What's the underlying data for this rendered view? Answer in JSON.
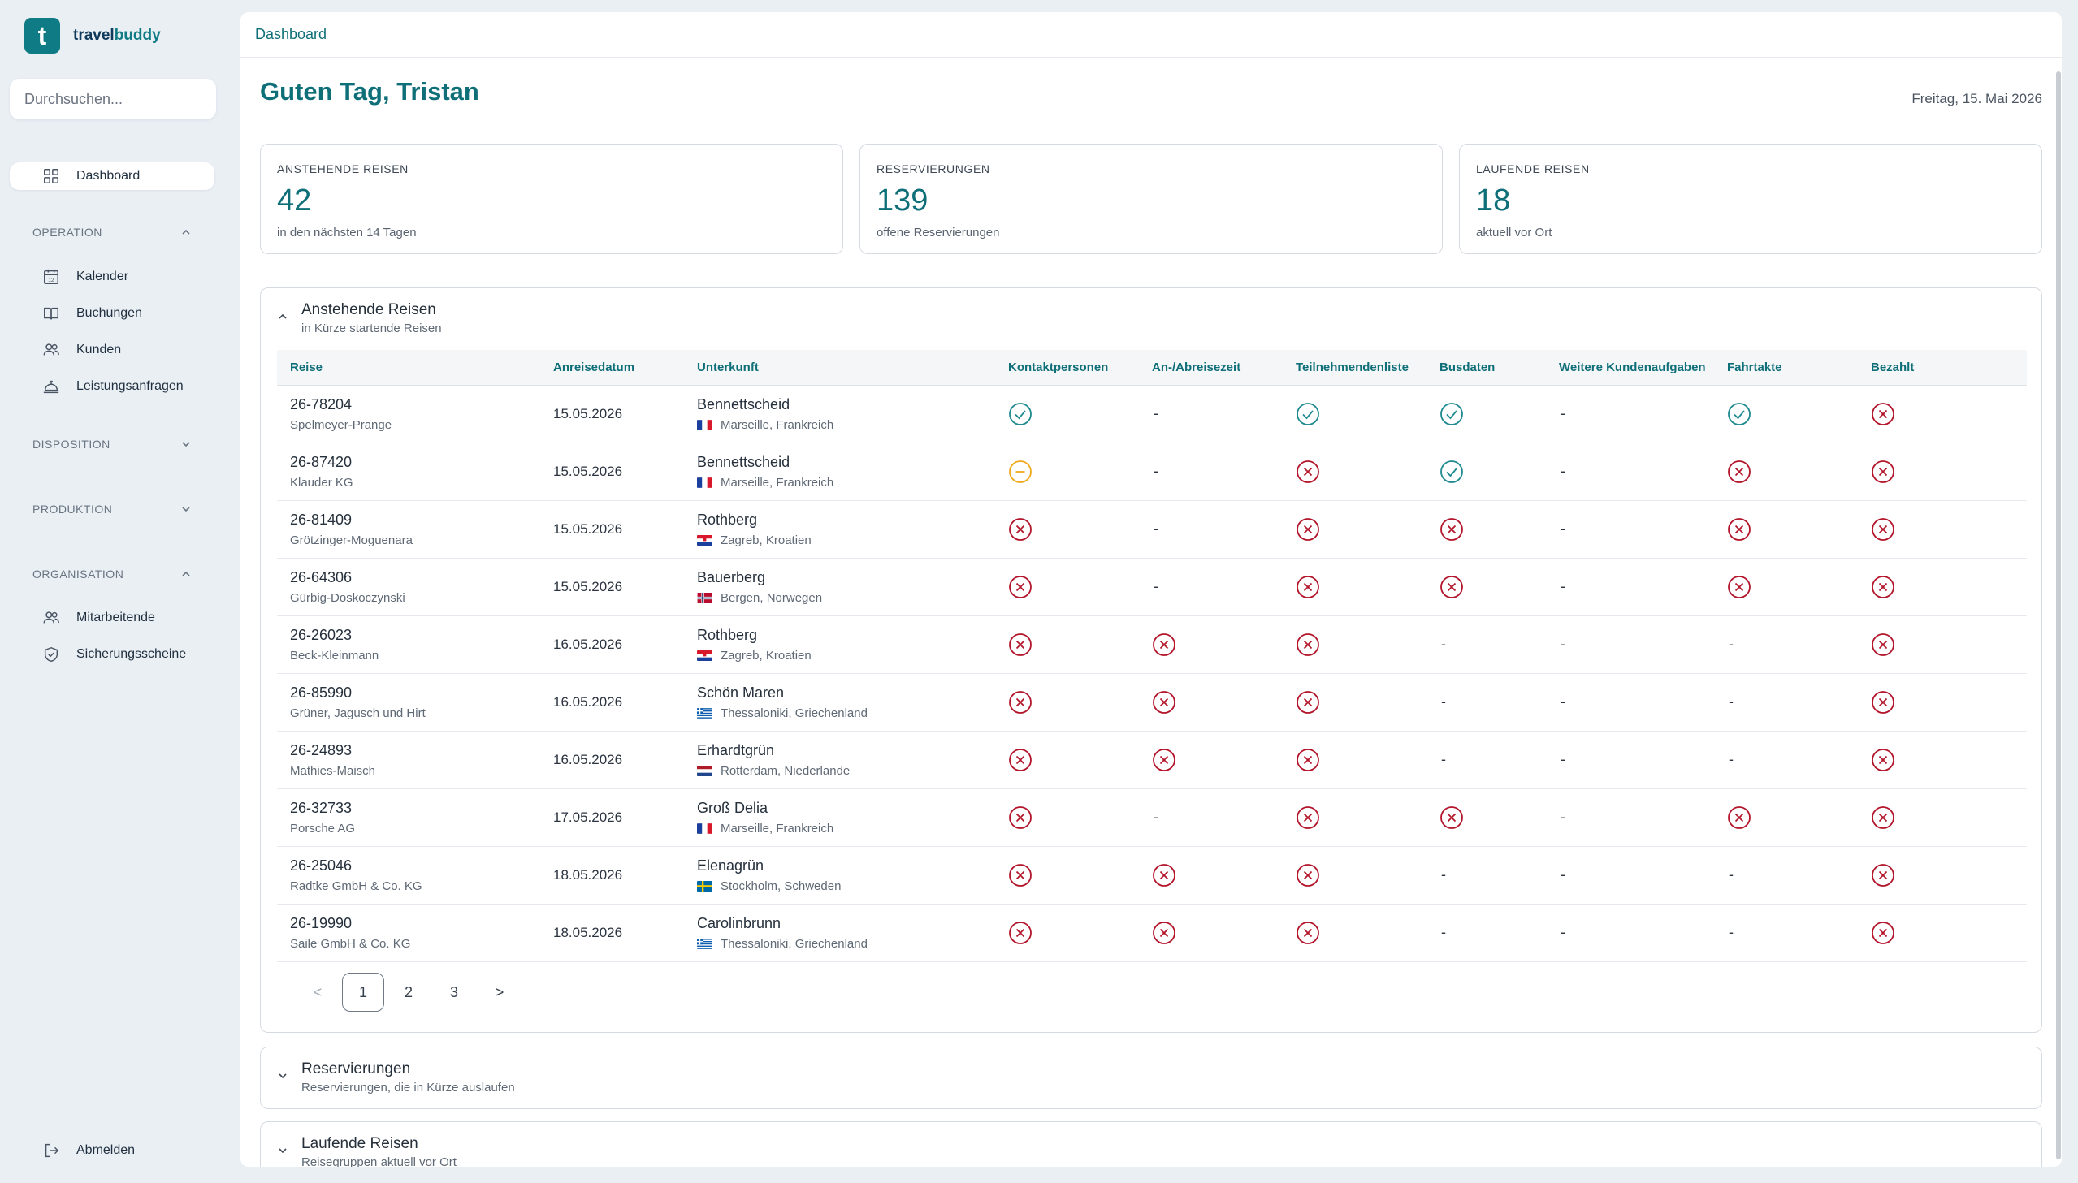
{
  "brand": {
    "mark": "t",
    "name_a": "travel",
    "name_b": "buddy",
    "color": "#0f7b84"
  },
  "search": {
    "placeholder": "Durchsuchen..."
  },
  "sidebar": {
    "dashboard": "Dashboard",
    "sections": {
      "operation": "OPERATION",
      "disposition": "DISPOSITION",
      "produktion": "PRODUKTION",
      "organisation": "ORGANISATION"
    },
    "operation_items": [
      "Kalender",
      "Buchungen",
      "Kunden",
      "Leistungsanfragen"
    ],
    "organisation_items": [
      "Mitarbeitende",
      "Sicherungsscheine"
    ],
    "logout": "Abmelden"
  },
  "topbar": {
    "breadcrumb": "Dashboard"
  },
  "greeting": "Guten Tag, Tristan",
  "date": "Freitag, 15. Mai 2026",
  "stats": [
    {
      "label": "ANSTEHENDE REISEN",
      "value": "42",
      "sub": "in den nächsten 14 Tagen"
    },
    {
      "label": "RESERVIERUNGEN",
      "value": "139",
      "sub": "offene Reservierungen"
    },
    {
      "label": "LAUFENDE REISEN",
      "value": "18",
      "sub": "aktuell vor Ort"
    }
  ],
  "panels": {
    "upcoming": {
      "title": "Anstehende Reisen",
      "subtitle": "in Kürze startende Reisen"
    },
    "reservations": {
      "title": "Reservierungen",
      "subtitle": "Reservierungen, die in Kürze auslaufen"
    },
    "running": {
      "title": "Laufende Reisen",
      "subtitle": "Reisegruppen aktuell vor Ort"
    }
  },
  "table": {
    "columns": [
      "Reise",
      "Anreisedatum",
      "Unterkunft",
      "Kontaktpersonen",
      "An-/Abreisezeit",
      "Teilnehmendenliste",
      "Busdaten",
      "Weitere Kundenaufgaben",
      "Fahrtakte",
      "Bezahlt"
    ],
    "rows": [
      {
        "id": "26-78204",
        "client": "Spelmeyer-Prange",
        "date": "15.05.2026",
        "acc": "Bennettscheid",
        "loc": "Marseille, Frankreich",
        "flag": "fr",
        "status": [
          "ok",
          "-",
          "ok",
          "ok",
          "-",
          "ok",
          "no"
        ]
      },
      {
        "id": "26-87420",
        "client": "Klauder KG",
        "date": "15.05.2026",
        "acc": "Bennettscheid",
        "loc": "Marseille, Frankreich",
        "flag": "fr",
        "status": [
          "partial",
          "-",
          "no",
          "ok",
          "-",
          "no",
          "no"
        ]
      },
      {
        "id": "26-81409",
        "client": "Grötzinger-Moguenara",
        "date": "15.05.2026",
        "acc": "Rothberg",
        "loc": "Zagreb, Kroatien",
        "flag": "hr",
        "status": [
          "no",
          "-",
          "no",
          "no",
          "-",
          "no",
          "no"
        ]
      },
      {
        "id": "26-64306",
        "client": "Gürbig-Doskoczynski",
        "date": "15.05.2026",
        "acc": "Bauerberg",
        "loc": "Bergen, Norwegen",
        "flag": "no",
        "status": [
          "no",
          "-",
          "no",
          "no",
          "-",
          "no",
          "no"
        ]
      },
      {
        "id": "26-26023",
        "client": "Beck-Kleinmann",
        "date": "16.05.2026",
        "acc": "Rothberg",
        "loc": "Zagreb, Kroatien",
        "flag": "hr",
        "status": [
          "no",
          "no",
          "no",
          "-",
          "-",
          "-",
          "no"
        ]
      },
      {
        "id": "26-85990",
        "client": "Grüner, Jagusch und Hirt",
        "date": "16.05.2026",
        "acc": "Schön Maren",
        "loc": "Thessaloniki, Griechenland",
        "flag": "gr",
        "status": [
          "no",
          "no",
          "no",
          "-",
          "-",
          "-",
          "no"
        ]
      },
      {
        "id": "26-24893",
        "client": "Mathies-Maisch",
        "date": "16.05.2026",
        "acc": "Erhardtgrün",
        "loc": "Rotterdam, Niederlande",
        "flag": "nl",
        "status": [
          "no",
          "no",
          "no",
          "-",
          "-",
          "-",
          "no"
        ]
      },
      {
        "id": "26-32733",
        "client": "Porsche AG",
        "date": "17.05.2026",
        "acc": "Groß Delia",
        "loc": "Marseille, Frankreich",
        "flag": "fr",
        "status": [
          "no",
          "-",
          "no",
          "no",
          "-",
          "no",
          "no"
        ]
      },
      {
        "id": "26-25046",
        "client": "Radtke GmbH & Co. KG",
        "date": "18.05.2026",
        "acc": "Elenagrün",
        "loc": "Stockholm, Schweden",
        "flag": "se",
        "status": [
          "no",
          "no",
          "no",
          "-",
          "-",
          "-",
          "no"
        ]
      },
      {
        "id": "26-19990",
        "client": "Saile GmbH & Co. KG",
        "date": "18.05.2026",
        "acc": "Carolinbrunn",
        "loc": "Thessaloniki, Griechenland",
        "flag": "gr",
        "status": [
          "no",
          "no",
          "no",
          "-",
          "-",
          "-",
          "no"
        ]
      }
    ]
  },
  "pagination": {
    "prev": "<",
    "pages": [
      "1",
      "2",
      "3"
    ],
    "current": "1",
    "next": ">"
  },
  "colors": {
    "accent": "#0f6f78",
    "ok": "#1f8a8f",
    "no": "#b3162b",
    "partial": "#f0a81c"
  }
}
